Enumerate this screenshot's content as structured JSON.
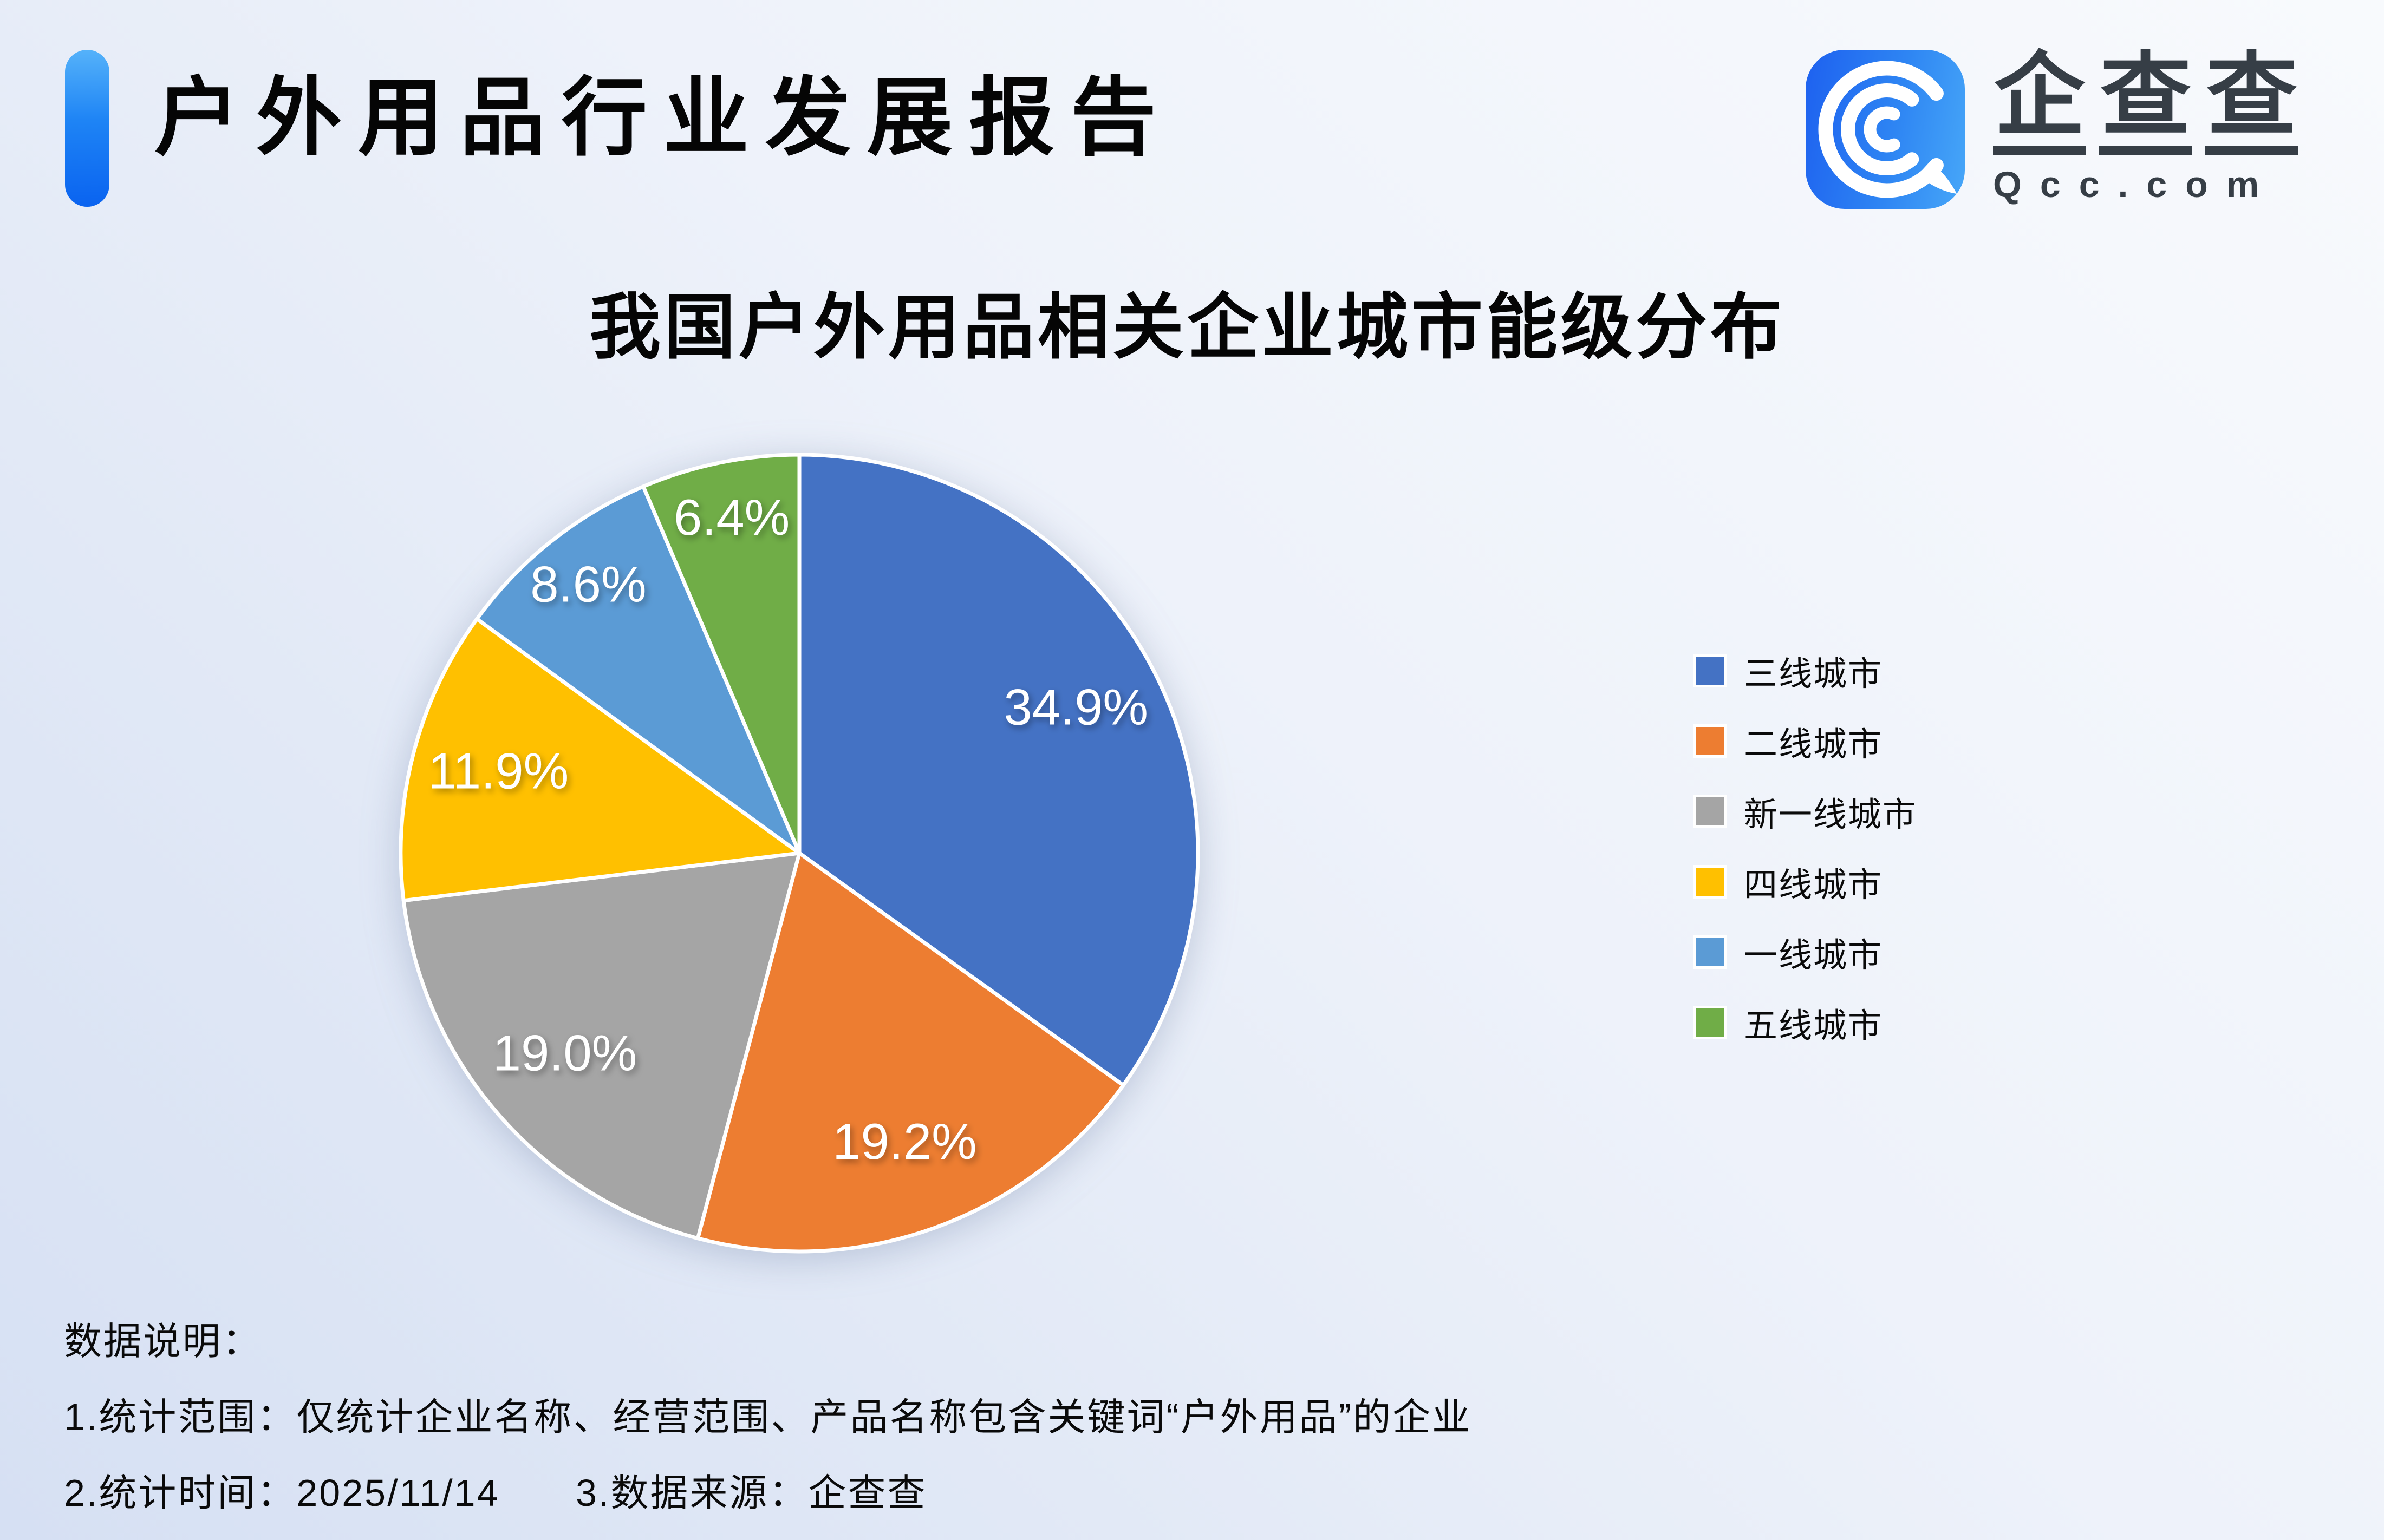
{
  "header": {
    "title": "户外用品行业发展报告",
    "logo": {
      "brand": "企查查",
      "domain": "Qcc.com",
      "icon": "qcc-spiral-q-icon"
    }
  },
  "chart_data": {
    "type": "pie",
    "title": "我国户外用品相关企业城市能级分布",
    "unit": "percent",
    "direction": "clockwise",
    "start_angle_deg": 0,
    "legend_position": "right",
    "data_labels": "percent-inside",
    "slices": [
      {
        "label": "三线城市",
        "value": 34.9,
        "display": "34.9%",
        "color": "#4472C4"
      },
      {
        "label": "二线城市",
        "value": 19.2,
        "display": "19.2%",
        "color": "#ED7D31"
      },
      {
        "label": "新一线城市",
        "value": 19.0,
        "display": "19.0%",
        "color": "#A5A5A5"
      },
      {
        "label": "四线城市",
        "value": 11.9,
        "display": "11.9%",
        "color": "#FFC000"
      },
      {
        "label": "一线城市",
        "value": 8.6,
        "display": "8.6%",
        "color": "#5B9BD5"
      },
      {
        "label": "五线城市",
        "value": 6.4,
        "display": "6.4%",
        "color": "#70AD47"
      }
    ]
  },
  "footnotes": {
    "heading": "数据说明：",
    "scope": "1.统计范围：仅统计企业名称、经营范围、产品名称包含关键词“户外用品”的企业",
    "time": "2.统计时间：2025/11/14",
    "source": "3.数据来源：企查查"
  },
  "colors": {
    "accent_bar_gradient": [
      "#55B2FA",
      "#0A63F0"
    ],
    "logo_square_gradient": [
      "#1F64F0",
      "#47A7F8"
    ],
    "brand_text": "#363E46",
    "background_gradient": [
      "#F8FAFD",
      "#D6E0F3"
    ],
    "pie_label_text": "#FFFFFF",
    "pie_slice_border": "#FFFFFF"
  }
}
